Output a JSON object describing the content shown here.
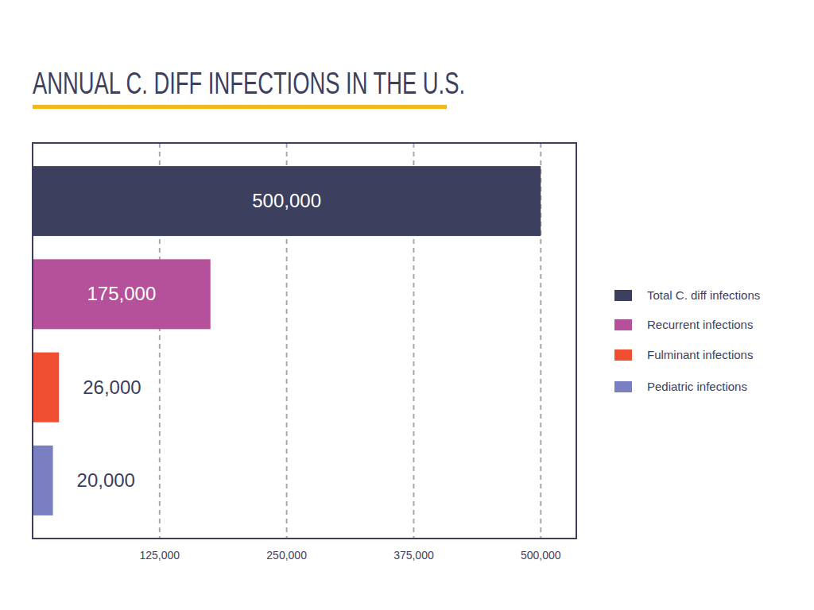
{
  "chart_data": {
    "type": "bar",
    "orientation": "horizontal",
    "title": "ANNUAL C. DIFF INFECTIONS IN THE U.S.",
    "categories": [
      "Total C. diff infections",
      "Recurrent infections",
      "Fulminant infections",
      "Pediatric infections"
    ],
    "values": [
      500000,
      175000,
      26000,
      20000
    ],
    "value_labels": [
      "500,000",
      "175,000",
      "26,000",
      "20,000"
    ],
    "colors": [
      "#3d3f5e",
      "#b5519a",
      "#f04e30",
      "#7a7fc1"
    ],
    "xlim": [
      0,
      535000
    ],
    "xticks": [
      {
        "value": 125000,
        "label": "125,000"
      },
      {
        "value": 250000,
        "label": "250,000"
      },
      {
        "value": 375000,
        "label": "375,000"
      },
      {
        "value": 500000,
        "label": "500,000"
      }
    ],
    "grid": true,
    "data_labels": true,
    "legend": "right",
    "tick_labels": "x"
  }
}
